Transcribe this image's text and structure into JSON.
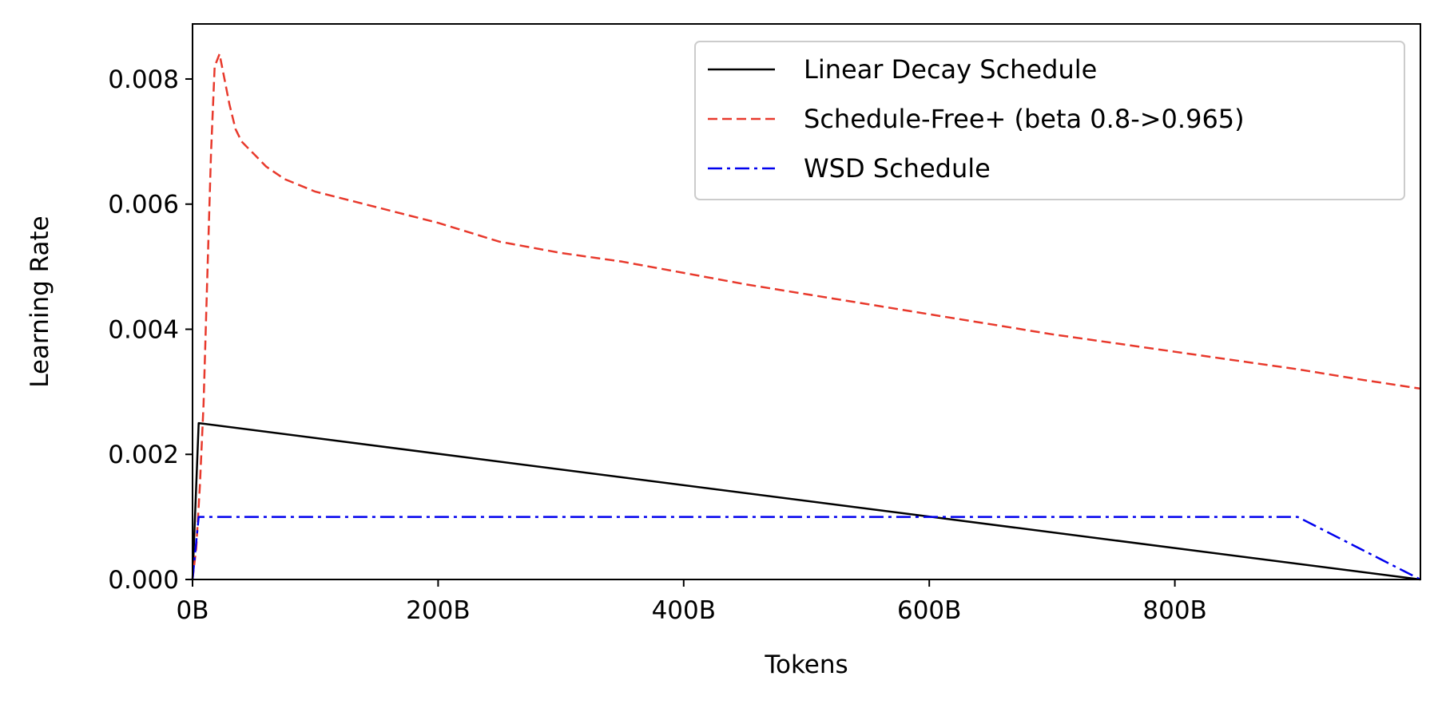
{
  "chart_data": {
    "type": "line",
    "xlabel": "Tokens",
    "ylabel": "Learning Rate",
    "xlim": [
      0,
      1000
    ],
    "ylim": [
      0,
      0.00888
    ],
    "x_unit": "B tokens",
    "x_ticks": [
      {
        "value": 0,
        "label": "0B"
      },
      {
        "value": 200,
        "label": "200B"
      },
      {
        "value": 400,
        "label": "400B"
      },
      {
        "value": 600,
        "label": "600B"
      },
      {
        "value": 800,
        "label": "800B"
      }
    ],
    "y_ticks": [
      {
        "value": 0.0,
        "label": "0.000"
      },
      {
        "value": 0.002,
        "label": "0.002"
      },
      {
        "value": 0.004,
        "label": "0.004"
      },
      {
        "value": 0.006,
        "label": "0.006"
      },
      {
        "value": 0.008,
        "label": "0.008"
      }
    ],
    "grid": false,
    "legend_position": "top-right",
    "series": [
      {
        "name": "Linear Decay Schedule",
        "color": "#000000",
        "style": "solid",
        "x": [
          0,
          5,
          1000
        ],
        "y": [
          0.0,
          0.0025,
          0.0
        ]
      },
      {
        "name": "Schedule-Free+ (beta 0.8->0.965)",
        "color": "#e8392c",
        "style": "dashed",
        "x": [
          0,
          3,
          6,
          9,
          12,
          15,
          18,
          22,
          26,
          30,
          35,
          40,
          50,
          60,
          75,
          100,
          150,
          200,
          250,
          300,
          350,
          400,
          450,
          500,
          550,
          600,
          650,
          700,
          750,
          800,
          850,
          900,
          950,
          1000
        ],
        "y": [
          0.0,
          0.0005,
          0.0015,
          0.0028,
          0.0048,
          0.0068,
          0.0082,
          0.0084,
          0.008,
          0.0076,
          0.0072,
          0.007,
          0.0068,
          0.0066,
          0.0064,
          0.0062,
          0.00595,
          0.0057,
          0.0054,
          0.00522,
          0.00508,
          0.0049,
          0.00472,
          0.00456,
          0.0044,
          0.00424,
          0.00408,
          0.00392,
          0.00378,
          0.00364,
          0.0035,
          0.00336,
          0.0032,
          0.00305
        ]
      },
      {
        "name": "WSD Schedule",
        "color": "#0000ee",
        "style": "dashdot",
        "x": [
          0,
          5,
          900,
          1000
        ],
        "y": [
          0.0,
          0.001,
          0.001,
          0.0
        ]
      }
    ]
  }
}
